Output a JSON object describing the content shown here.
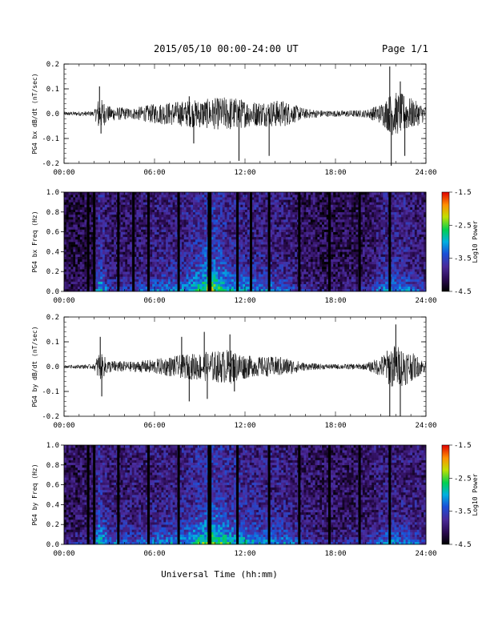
{
  "header": {
    "date_range": "2015/05/10  00:00-24:00 UT",
    "page": "Page 1/1"
  },
  "footer": {
    "xlabel": "Universal Time (hh:mm)"
  },
  "colorbar": {
    "label": "Log10 Power",
    "ticks": [
      "-1.5",
      "-2.5",
      "-3.5",
      "-4.5"
    ],
    "range": [
      -4.5,
      -1.5
    ]
  },
  "chart_data": [
    {
      "type": "line",
      "id": "bx-dbdt",
      "ylabel": "PG4 bx dB/dt (nT/sec)",
      "ylim": [
        -0.2,
        0.2
      ],
      "yticks": [
        "0.2",
        "0.1",
        "0.0",
        "-0.1",
        "-0.2"
      ],
      "xlim": [
        "00:00",
        "24:00"
      ],
      "xticks": [
        "00:00",
        "06:00",
        "12:00",
        "18:00",
        "24:00"
      ],
      "envelope": [
        {
          "t": 0.0,
          "a": 0.008
        },
        {
          "t": 2.0,
          "a": 0.01
        },
        {
          "t": 2.3,
          "a": 0.07
        },
        {
          "t": 3.0,
          "a": 0.03
        },
        {
          "t": 4.5,
          "a": 0.022
        },
        {
          "t": 6.0,
          "a": 0.04
        },
        {
          "t": 7.5,
          "a": 0.05
        },
        {
          "t": 9.5,
          "a": 0.06
        },
        {
          "t": 11.0,
          "a": 0.07
        },
        {
          "t": 12.5,
          "a": 0.05
        },
        {
          "t": 14.5,
          "a": 0.055
        },
        {
          "t": 16.0,
          "a": 0.02
        },
        {
          "t": 17.5,
          "a": 0.012
        },
        {
          "t": 20.0,
          "a": 0.015
        },
        {
          "t": 21.0,
          "a": 0.04
        },
        {
          "t": 21.8,
          "a": 0.09
        },
        {
          "t": 22.5,
          "a": 0.08
        },
        {
          "t": 24.0,
          "a": 0.03
        }
      ],
      "spikes": [
        {
          "t": 2.35,
          "v": 0.11
        },
        {
          "t": 2.45,
          "v": -0.08
        },
        {
          "t": 8.3,
          "v": 0.07
        },
        {
          "t": 8.6,
          "v": -0.12
        },
        {
          "t": 11.6,
          "v": -0.19
        },
        {
          "t": 13.6,
          "v": -0.17
        },
        {
          "t": 21.6,
          "v": 0.19
        },
        {
          "t": 21.7,
          "v": -0.21
        },
        {
          "t": 22.3,
          "v": 0.13
        },
        {
          "t": 22.6,
          "v": -0.17
        }
      ]
    },
    {
      "type": "heatmap",
      "id": "bx-spectrogram",
      "ylabel": "PG4 bx Freq (Hz)",
      "ylim": [
        0.0,
        1.0
      ],
      "yticks": [
        "1.0",
        "0.8",
        "0.6",
        "0.4",
        "0.2",
        "0.0"
      ],
      "xlim": [
        "00:00",
        "24:00"
      ],
      "xticks": [
        "00:00",
        "06:00",
        "12:00",
        "18:00",
        "24:00"
      ],
      "color_scale": "log10 power, -4.5 to -1.5",
      "activity": [
        {
          "t": 0.0,
          "p": 0.1
        },
        {
          "t": 2.0,
          "p": 0.15
        },
        {
          "t": 2.3,
          "p": 0.65
        },
        {
          "t": 3.0,
          "p": 0.35
        },
        {
          "t": 4.5,
          "p": 0.3
        },
        {
          "t": 6.0,
          "p": 0.45
        },
        {
          "t": 8.0,
          "p": 0.5
        },
        {
          "t": 9.7,
          "p": 0.85
        },
        {
          "t": 11.0,
          "p": 0.6
        },
        {
          "t": 12.5,
          "p": 0.5
        },
        {
          "t": 14.5,
          "p": 0.45
        },
        {
          "t": 16.0,
          "p": 0.25
        },
        {
          "t": 17.5,
          "p": 0.15
        },
        {
          "t": 20.0,
          "p": 0.25
        },
        {
          "t": 21.5,
          "p": 0.55
        },
        {
          "t": 22.5,
          "p": 0.5
        },
        {
          "t": 24.0,
          "p": 0.3
        }
      ],
      "data_gaps_hours": [
        1.6,
        2.0,
        3.6,
        4.6,
        5.6,
        7.6,
        9.6,
        9.7,
        11.5,
        12.4,
        13.6,
        15.6,
        17.6,
        19.6,
        21.6
      ]
    },
    {
      "type": "line",
      "id": "by-dbdt",
      "ylabel": "PG4 by dB/dt (nT/sec)",
      "ylim": [
        -0.2,
        0.2
      ],
      "yticks": [
        "0.2",
        "0.1",
        "0.0",
        "-0.1",
        "-0.2"
      ],
      "xlim": [
        "00:00",
        "24:00"
      ],
      "xticks": [
        "00:00",
        "06:00",
        "12:00",
        "18:00",
        "24:00"
      ],
      "envelope": [
        {
          "t": 0.0,
          "a": 0.006
        },
        {
          "t": 2.0,
          "a": 0.01
        },
        {
          "t": 2.3,
          "a": 0.06
        },
        {
          "t": 3.0,
          "a": 0.025
        },
        {
          "t": 4.5,
          "a": 0.02
        },
        {
          "t": 6.0,
          "a": 0.03
        },
        {
          "t": 7.5,
          "a": 0.045
        },
        {
          "t": 9.5,
          "a": 0.06
        },
        {
          "t": 11.0,
          "a": 0.07
        },
        {
          "t": 12.5,
          "a": 0.04
        },
        {
          "t": 14.5,
          "a": 0.04
        },
        {
          "t": 16.0,
          "a": 0.015
        },
        {
          "t": 17.5,
          "a": 0.01
        },
        {
          "t": 20.0,
          "a": 0.012
        },
        {
          "t": 21.0,
          "a": 0.04
        },
        {
          "t": 21.8,
          "a": 0.09
        },
        {
          "t": 22.5,
          "a": 0.08
        },
        {
          "t": 24.0,
          "a": 0.02
        }
      ],
      "spikes": [
        {
          "t": 2.4,
          "v": 0.12
        },
        {
          "t": 2.5,
          "v": -0.12
        },
        {
          "t": 7.8,
          "v": 0.12
        },
        {
          "t": 8.3,
          "v": -0.14
        },
        {
          "t": 9.3,
          "v": 0.14
        },
        {
          "t": 9.5,
          "v": -0.13
        },
        {
          "t": 11.0,
          "v": 0.13
        },
        {
          "t": 11.3,
          "v": -0.1
        },
        {
          "t": 21.6,
          "v": -0.2
        },
        {
          "t": 22.0,
          "v": 0.17
        },
        {
          "t": 22.3,
          "v": -0.2
        }
      ]
    },
    {
      "type": "heatmap",
      "id": "by-spectrogram",
      "ylabel": "PG4 by Freq (Hz)",
      "ylim": [
        0.0,
        1.0
      ],
      "yticks": [
        "1.0",
        "0.8",
        "0.6",
        "0.4",
        "0.2",
        "0.0"
      ],
      "xlim": [
        "00:00",
        "24:00"
      ],
      "xticks": [
        "00:00",
        "06:00",
        "12:00",
        "18:00",
        "24:00"
      ],
      "color_scale": "log10 power, -4.5 to -1.5",
      "activity": [
        {
          "t": 0.0,
          "p": 0.2
        },
        {
          "t": 2.0,
          "p": 0.3
        },
        {
          "t": 2.3,
          "p": 0.7
        },
        {
          "t": 3.0,
          "p": 0.45
        },
        {
          "t": 4.5,
          "p": 0.4
        },
        {
          "t": 6.0,
          "p": 0.45
        },
        {
          "t": 8.0,
          "p": 0.55
        },
        {
          "t": 9.7,
          "p": 0.8
        },
        {
          "t": 11.0,
          "p": 0.65
        },
        {
          "t": 12.5,
          "p": 0.55
        },
        {
          "t": 14.5,
          "p": 0.5
        },
        {
          "t": 16.0,
          "p": 0.35
        },
        {
          "t": 17.5,
          "p": 0.25
        },
        {
          "t": 20.0,
          "p": 0.3
        },
        {
          "t": 21.5,
          "p": 0.5
        },
        {
          "t": 22.5,
          "p": 0.45
        },
        {
          "t": 24.0,
          "p": 0.35
        }
      ],
      "data_gaps_hours": [
        1.6,
        2.0,
        3.6,
        5.6,
        7.6,
        9.6,
        9.7,
        11.5,
        13.6,
        15.6,
        17.6,
        19.6,
        21.6
      ]
    }
  ]
}
